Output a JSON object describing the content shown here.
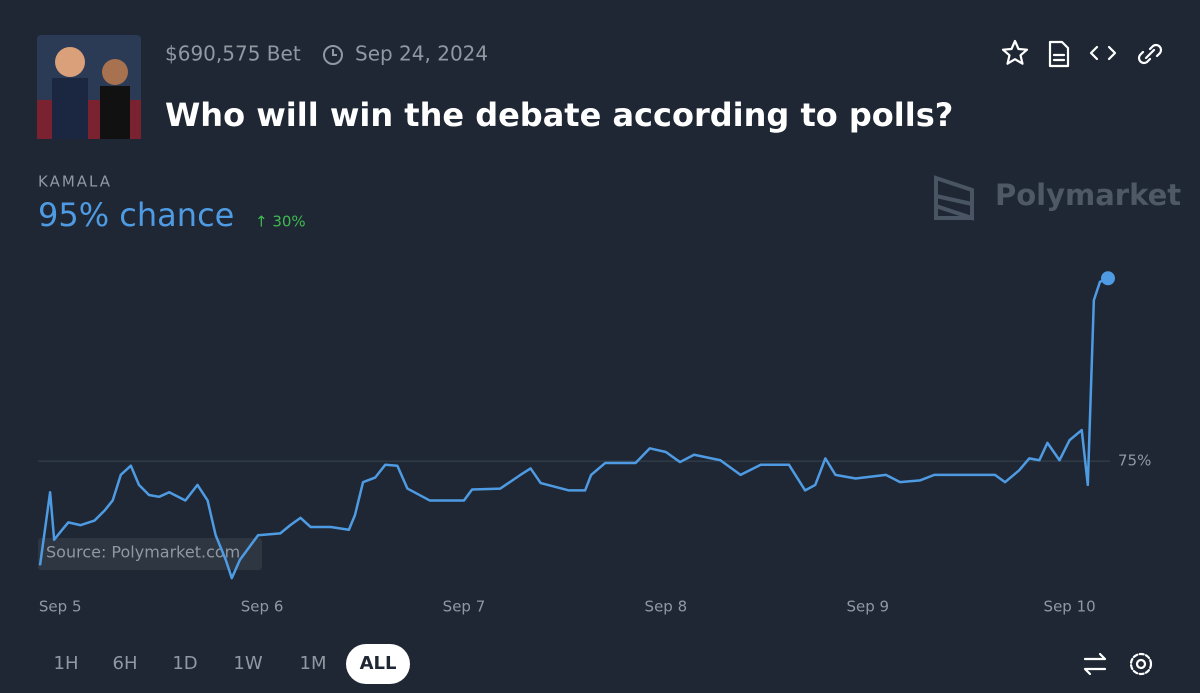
{
  "header": {
    "volume": "$690,575 Bet",
    "date": "Sep 24, 2024",
    "title": "Who will win the debate according to polls?"
  },
  "outcome": {
    "name": "KAMALA",
    "chance": "95% chance",
    "change": "↑ 30%"
  },
  "brand": "Polymarket",
  "chart_data": {
    "type": "line",
    "source": "Source: Polymarket.com",
    "color": "#4f9be3",
    "x": [
      4.9,
      4.95,
      4.97,
      5.01,
      5.04,
      5.1,
      5.17,
      5.22,
      5.26,
      5.3,
      5.35,
      5.39,
      5.44,
      5.49,
      5.54,
      5.62,
      5.68,
      5.73,
      5.77,
      5.82,
      5.85,
      5.89,
      5.98,
      6.09,
      6.14,
      6.19,
      6.24,
      6.34,
      6.43,
      6.46,
      6.5,
      6.56,
      6.61,
      6.67,
      6.72,
      6.83,
      7.0,
      7.04,
      7.18,
      7.28,
      7.33,
      7.38,
      7.52,
      7.6,
      7.63,
      7.7,
      7.85,
      7.92,
      8.0,
      8.07,
      8.14,
      8.27,
      8.37,
      8.47,
      8.61,
      8.69,
      8.74,
      8.79,
      8.84,
      8.94,
      9.09,
      9.16,
      9.26,
      9.33,
      9.63,
      9.68,
      9.75,
      9.8,
      9.85,
      9.89,
      9.95,
      10.0,
      10.06,
      10.09,
      10.12,
      10.15,
      10.19
    ],
    "values": [
      63.6,
      71.6,
      66.4,
      67.5,
      68.3,
      68.0,
      68.5,
      69.6,
      70.7,
      73.5,
      74.5,
      72.4,
      71.3,
      71.1,
      71.6,
      70.7,
      72.4,
      70.7,
      66.9,
      64.2,
      62.2,
      64.2,
      66.9,
      67.1,
      68.0,
      68.8,
      67.8,
      67.8,
      67.5,
      69.1,
      72.7,
      73.2,
      74.6,
      74.5,
      72.0,
      70.7,
      70.7,
      71.9,
      72.0,
      73.5,
      74.2,
      72.6,
      71.8,
      71.8,
      73.5,
      74.8,
      74.8,
      76.4,
      76.0,
      74.9,
      75.7,
      75.1,
      73.5,
      74.6,
      74.6,
      71.8,
      72.4,
      75.3,
      73.5,
      73.1,
      73.5,
      72.7,
      72.9,
      73.5,
      73.5,
      72.7,
      74.0,
      75.3,
      75.1,
      77.0,
      75.1,
      77.3,
      78.4,
      72.4,
      92.6,
      94.6,
      95.0
    ],
    "xlim": [
      4.89,
      10.2
    ],
    "xticks": [
      {
        "value": 5,
        "label": "Sep 5"
      },
      {
        "value": 6,
        "label": "Sep 6"
      },
      {
        "value": 7,
        "label": "Sep 7"
      },
      {
        "value": 8,
        "label": "Sep 8"
      },
      {
        "value": 9,
        "label": "Sep 9"
      },
      {
        "value": 10,
        "label": "Sep 10"
      }
    ],
    "ylim": [
      62,
      97
    ],
    "yticks": [
      {
        "value": 75,
        "label": "75%"
      }
    ],
    "grid": true
  },
  "controls": {
    "ranges": [
      "1H",
      "6H",
      "1D",
      "1W",
      "1M",
      "ALL"
    ],
    "selected": 5
  }
}
